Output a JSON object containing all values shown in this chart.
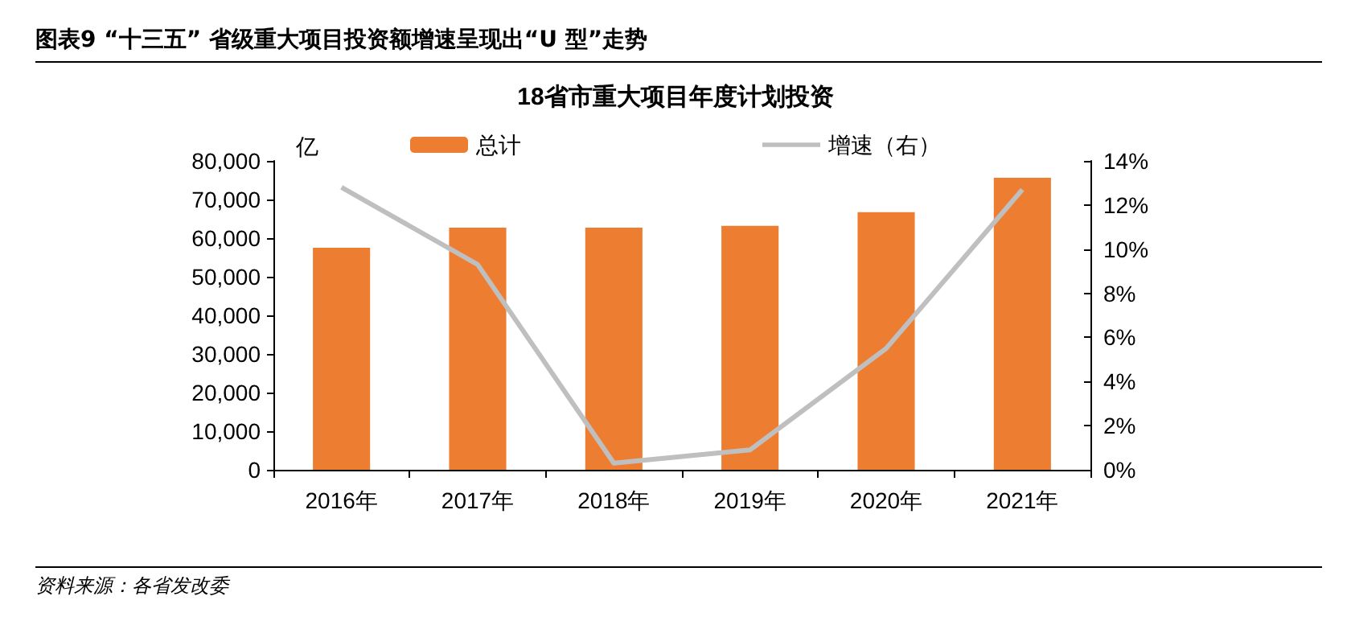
{
  "chart_data": {
    "type": "bar",
    "title": "图表9    “十三五” 省级重大项目投资额增速呈现出“U 型”走势",
    "subtitle": "18省市重大项目年度计划投资",
    "ylabel": "亿",
    "annotations": [
      "资料来源：各省发改委"
    ],
    "categories": [
      "2016年",
      "2017年",
      "2018年",
      "2019年",
      "2020年",
      "2021年"
    ],
    "series": [
      {
        "name": "总计",
        "color": "#ed7d31",
        "values": [
          57500,
          62700,
          62700,
          63200,
          66700,
          75600
        ]
      },
      {
        "name": "增速（右）",
        "type": "line",
        "axis": "y2",
        "color": "#bfbfbf",
        "marker": "none",
        "values": [
          12.8,
          9.3,
          0.3,
          0.9,
          5.5,
          12.7
        ]
      }
    ],
    "ylim": [
      0,
      80000
    ],
    "yticks": [
      0,
      {
        "value": 10000,
        "label": "10,000"
      },
      {
        "value": 20000,
        "label": "20,000"
      },
      {
        "value": 30000,
        "label": "30,000"
      },
      {
        "value": 40000,
        "label": "40,000"
      },
      {
        "value": 50000,
        "label": "50,000"
      },
      {
        "value": 60000,
        "label": "60,000"
      },
      {
        "value": 70000,
        "label": "70,000"
      },
      {
        "value": 80000,
        "label": "80,000"
      }
    ],
    "y2lim": [
      0,
      14
    ],
    "y2ticks": [
      {
        "value": 0,
        "label": "0%"
      },
      {
        "value": 2,
        "label": "2%"
      },
      {
        "value": 4,
        "label": "4%"
      },
      {
        "value": 6,
        "label": "6%"
      },
      {
        "value": 8,
        "label": "8%"
      },
      {
        "value": 10,
        "label": "10%"
      },
      {
        "value": 12,
        "label": "12%"
      },
      {
        "value": 14,
        "label": "14%"
      }
    ],
    "grid": false,
    "legend": "top"
  }
}
